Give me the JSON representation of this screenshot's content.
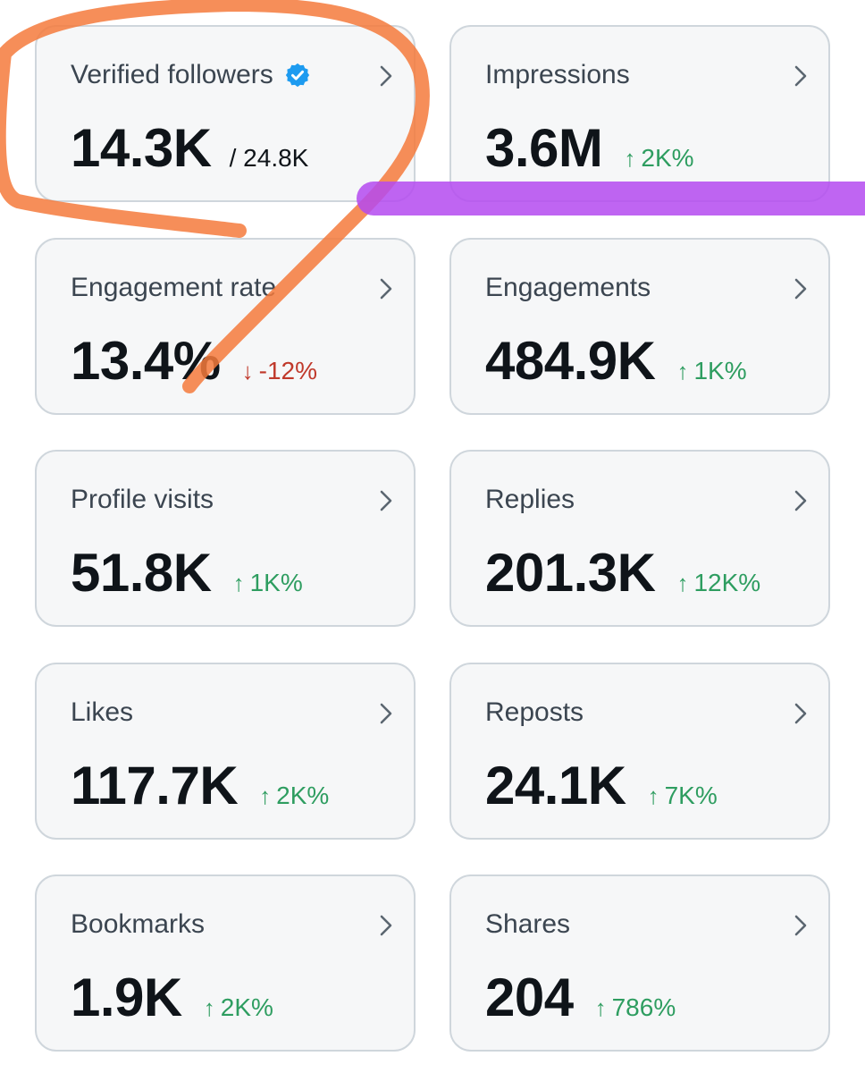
{
  "colors": {
    "up": "#2e9d60",
    "down": "#c0392b",
    "verified": "#1d9bf0",
    "highlight_orange": "#f57a3c",
    "highlight_purple": "#b44af0"
  },
  "cards": {
    "verified_followers": {
      "label": "Verified followers",
      "value": "14.3K",
      "total": "/ 24.8K",
      "icon": "verified-badge-icon"
    },
    "impressions": {
      "label": "Impressions",
      "value": "3.6M",
      "arrow": "↑",
      "change": "2K%"
    },
    "engagement_rate": {
      "label": "Engagement rate",
      "value": "13.4%",
      "arrow": "↓",
      "change": "-12%"
    },
    "engagements": {
      "label": "Engagements",
      "value": "484.9K",
      "arrow": "↑",
      "change": "1K%"
    },
    "profile_visits": {
      "label": "Profile visits",
      "value": "51.8K",
      "arrow": "↑",
      "change": "1K%"
    },
    "replies": {
      "label": "Replies",
      "value": "201.3K",
      "arrow": "↑",
      "change": "12K%"
    },
    "likes": {
      "label": "Likes",
      "value": "117.7K",
      "arrow": "↑",
      "change": "2K%"
    },
    "reposts": {
      "label": "Reposts",
      "value": "24.1K",
      "arrow": "↑",
      "change": "7K%"
    },
    "bookmarks": {
      "label": "Bookmarks",
      "value": "1.9K",
      "arrow": "↑",
      "change": "2K%"
    },
    "shares": {
      "label": "Shares",
      "value": "204",
      "arrow": "↑",
      "change": "786%"
    }
  }
}
